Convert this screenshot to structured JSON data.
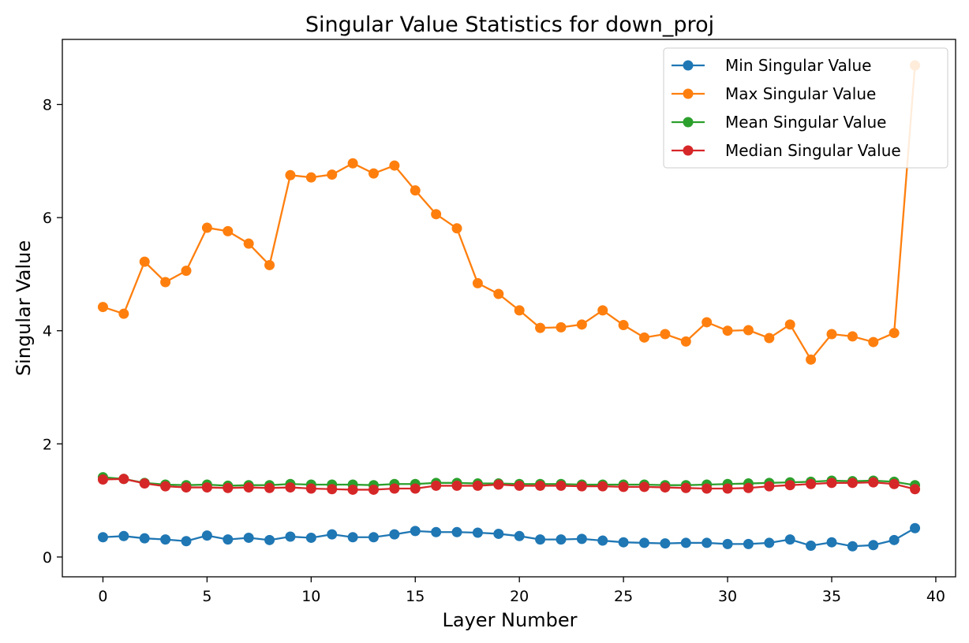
{
  "chart_data": {
    "type": "line",
    "title": "Singular Value Statistics for down_proj",
    "xlabel": "Layer Number",
    "ylabel": "Singular Value",
    "xlim": [
      -1.95,
      40.95
    ],
    "ylim": [
      -0.35,
      9.15
    ],
    "xticks": [
      0,
      5,
      10,
      15,
      20,
      25,
      30,
      35,
      40
    ],
    "yticks": [
      0,
      2,
      4,
      6,
      8
    ],
    "grid": false,
    "legend_position": "top-right",
    "x": [
      0,
      1,
      2,
      3,
      4,
      5,
      6,
      7,
      8,
      9,
      10,
      11,
      12,
      13,
      14,
      15,
      16,
      17,
      18,
      19,
      20,
      21,
      22,
      23,
      24,
      25,
      26,
      27,
      28,
      29,
      30,
      31,
      32,
      33,
      34,
      35,
      36,
      37,
      38,
      39
    ],
    "series": [
      {
        "name": "Min Singular Value",
        "color": "#1f77b4",
        "values": [
          0.35,
          0.37,
          0.33,
          0.31,
          0.28,
          0.38,
          0.31,
          0.34,
          0.3,
          0.36,
          0.34,
          0.4,
          0.35,
          0.35,
          0.4,
          0.46,
          0.44,
          0.44,
          0.43,
          0.41,
          0.37,
          0.31,
          0.31,
          0.32,
          0.29,
          0.26,
          0.25,
          0.24,
          0.25,
          0.25,
          0.23,
          0.23,
          0.25,
          0.31,
          0.2,
          0.26,
          0.19,
          0.21,
          0.3,
          0.51
        ]
      },
      {
        "name": "Max Singular Value",
        "color": "#ff7f0e",
        "values": [
          4.42,
          4.3,
          5.22,
          4.86,
          5.06,
          5.82,
          5.76,
          5.54,
          5.16,
          6.75,
          6.71,
          6.76,
          6.96,
          6.78,
          6.92,
          6.48,
          6.06,
          5.81,
          4.84,
          4.65,
          4.36,
          4.05,
          4.06,
          4.11,
          4.36,
          4.1,
          3.88,
          3.94,
          3.81,
          4.15,
          4.0,
          4.01,
          3.87,
          4.11,
          3.49,
          3.94,
          3.9,
          3.8,
          3.96,
          8.69
        ]
      },
      {
        "name": "Mean Singular Value",
        "color": "#2ca02c",
        "values": [
          1.41,
          1.38,
          1.31,
          1.28,
          1.27,
          1.28,
          1.26,
          1.27,
          1.27,
          1.29,
          1.28,
          1.28,
          1.28,
          1.27,
          1.29,
          1.29,
          1.31,
          1.31,
          1.3,
          1.3,
          1.29,
          1.29,
          1.29,
          1.28,
          1.28,
          1.28,
          1.28,
          1.27,
          1.27,
          1.28,
          1.29,
          1.3,
          1.31,
          1.32,
          1.33,
          1.35,
          1.34,
          1.35,
          1.33,
          1.27
        ]
      },
      {
        "name": "Median Singular Value",
        "color": "#d62728",
        "values": [
          1.37,
          1.38,
          1.3,
          1.25,
          1.23,
          1.23,
          1.22,
          1.23,
          1.22,
          1.23,
          1.21,
          1.2,
          1.19,
          1.19,
          1.21,
          1.21,
          1.26,
          1.26,
          1.26,
          1.28,
          1.26,
          1.26,
          1.26,
          1.25,
          1.25,
          1.24,
          1.24,
          1.23,
          1.22,
          1.21,
          1.21,
          1.22,
          1.25,
          1.27,
          1.29,
          1.31,
          1.31,
          1.32,
          1.29,
          1.2
        ]
      }
    ]
  }
}
